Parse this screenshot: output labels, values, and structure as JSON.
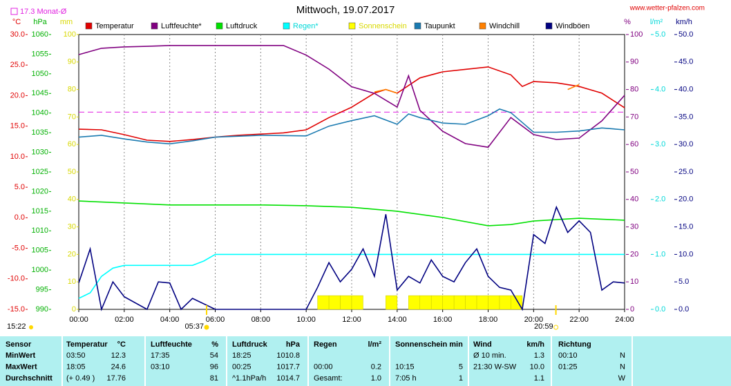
{
  "chart_data": {
    "type": "line",
    "title": "Mittwoch, 19.07.2017",
    "source": "www.wetter-pfalzen.com",
    "monthly_mean": {
      "label": "17.3 Monat-Ø",
      "value": 17.3,
      "color": "#e020e0"
    },
    "annotations": {
      "time": "15:22",
      "sunrise": {
        "label": "05:37",
        "value": 5.62
      },
      "sunset": {
        "label": "20:59",
        "value": 20.98
      }
    },
    "xlim": [
      0,
      24
    ],
    "xticks": [
      {
        "value": 0,
        "label": "00:00"
      },
      {
        "value": 2,
        "label": "02:00"
      },
      {
        "value": 4,
        "label": "04:00"
      },
      {
        "value": 6,
        "label": "06:00"
      },
      {
        "value": 8,
        "label": "08:00"
      },
      {
        "value": 10,
        "label": "10:00"
      },
      {
        "value": 12,
        "label": "12:00"
      },
      {
        "value": 14,
        "label": "14:00"
      },
      {
        "value": 16,
        "label": "16:00"
      },
      {
        "value": 18,
        "label": "18:00"
      },
      {
        "value": 20,
        "label": "20:00"
      },
      {
        "value": 22,
        "label": "22:00"
      },
      {
        "value": 24,
        "label": "24:00"
      }
    ],
    "grid": true,
    "axes": [
      {
        "label": "°C",
        "side": "left",
        "color": "#e00000",
        "lim": [
          -15,
          30
        ],
        "ticks": [
          {
            "value": -15,
            "label": "-15.0"
          },
          {
            "value": -10,
            "label": "-10.0"
          },
          {
            "value": -5,
            "label": "-5.0"
          },
          {
            "value": 0,
            "label": "0.0"
          },
          {
            "value": 5,
            "label": "5.0"
          },
          {
            "value": 10,
            "label": "10.0"
          },
          {
            "value": 15,
            "label": "15.0"
          },
          {
            "value": 20,
            "label": "20.0"
          },
          {
            "value": 25,
            "label": "25.0"
          },
          {
            "value": 30,
            "label": "30.0"
          }
        ]
      },
      {
        "label": "hPa",
        "side": "left",
        "color": "#00b000",
        "lim": [
          990,
          1060
        ],
        "ticks": [
          990,
          995,
          1000,
          1005,
          1010,
          1015,
          1020,
          1025,
          1030,
          1035,
          1040,
          1045,
          1050,
          1055,
          1060
        ]
      },
      {
        "label": "mm",
        "side": "left",
        "color": "#d8d800",
        "lim": [
          0,
          100
        ],
        "ticks": [
          0,
          10,
          20,
          30,
          40,
          50,
          60,
          70,
          80,
          90,
          100
        ]
      },
      {
        "label": "%",
        "side": "right",
        "color": "#800080",
        "lim": [
          0,
          100
        ],
        "ticks": [
          0,
          10,
          20,
          30,
          40,
          50,
          60,
          70,
          80,
          90,
          100
        ]
      },
      {
        "label": "l/m²",
        "side": "right",
        "color": "#00d8d8",
        "lim": [
          0,
          5
        ],
        "ticks": [
          {
            "value": 0,
            "label": "0.0"
          },
          {
            "value": 1,
            "label": "1.0"
          },
          {
            "value": 2,
            "label": "2.0"
          },
          {
            "value": 3,
            "label": "3.0"
          },
          {
            "value": 4,
            "label": "4.0"
          },
          {
            "value": 5,
            "label": "5.0"
          }
        ]
      },
      {
        "label": "km/h",
        "side": "right",
        "color": "#000080",
        "lim": [
          0,
          50
        ],
        "ticks": [
          {
            "value": 0,
            "label": "0.0"
          },
          {
            "value": 5,
            "label": "5.0"
          },
          {
            "value": 10,
            "label": "10.0"
          },
          {
            "value": 15,
            "label": "15.0"
          },
          {
            "value": 20,
            "label": "20.0"
          },
          {
            "value": 25,
            "label": "25.0"
          },
          {
            "value": 30,
            "label": "30.0"
          },
          {
            "value": 35,
            "label": "35.0"
          },
          {
            "value": 40,
            "label": "40.0"
          },
          {
            "value": 45,
            "label": "45.0"
          },
          {
            "value": 50,
            "label": "50.0"
          }
        ]
      }
    ],
    "series": [
      {
        "name": "Temperatur",
        "color": "#e00000",
        "axis": 0,
        "kind": "line",
        "x": [
          0,
          1,
          2,
          3,
          4,
          5,
          6,
          7,
          8,
          9,
          10,
          11,
          12,
          13,
          13.5,
          14,
          15,
          16,
          17,
          18,
          19,
          19.5,
          20,
          21,
          22,
          23,
          24
        ],
        "values": [
          14.5,
          14.4,
          13.6,
          12.7,
          12.5,
          12.8,
          13.2,
          13.5,
          13.7,
          13.9,
          14.4,
          16.4,
          18.1,
          20.4,
          21.0,
          20.4,
          22.9,
          23.9,
          24.3,
          24.7,
          23.4,
          21.5,
          22.3,
          22.1,
          21.5,
          20.4,
          18.0
        ]
      },
      {
        "name": "Luftfeuchte*",
        "color": "#800080",
        "axis": 3,
        "kind": "line",
        "x": [
          0,
          1,
          2,
          3,
          4,
          5,
          6,
          7,
          8,
          9,
          10,
          11,
          12,
          13,
          14,
          14.5,
          15,
          16,
          17,
          18,
          19,
          20,
          21,
          22,
          23,
          24
        ],
        "values": [
          92.7,
          95,
          95.5,
          95.7,
          96,
          96,
          96,
          96,
          96,
          96,
          92.5,
          87.4,
          81,
          78.6,
          73.6,
          85,
          72.4,
          64.8,
          60.3,
          59,
          69.8,
          63.6,
          61.8,
          62.3,
          68.6,
          77.9
        ]
      },
      {
        "name": "Luftdruck",
        "color": "#00e000",
        "axis": 1,
        "kind": "line",
        "x": [
          0,
          2,
          4,
          6,
          8,
          10,
          12,
          14,
          16,
          18,
          19,
          20,
          22,
          24
        ],
        "values": [
          1017.6,
          1017.1,
          1016.6,
          1016.6,
          1016.6,
          1016.4,
          1016.0,
          1015.0,
          1013.4,
          1011.3,
          1011.6,
          1012.5,
          1013.2,
          1012.7
        ]
      },
      {
        "name": "Regen*",
        "color": "#00ffff",
        "axis": 4,
        "kind": "line",
        "x": [
          0,
          0.5,
          1,
          1.5,
          2,
          3,
          4,
          5,
          5.5,
          6,
          8,
          10,
          12,
          14,
          16,
          18,
          20,
          22,
          24
        ],
        "values": [
          0.2,
          0.3,
          0.6,
          0.75,
          0.8,
          0.8,
          0.8,
          0.8,
          0.88,
          1.0,
          1.0,
          1.0,
          1.0,
          1.0,
          1.0,
          1.0,
          1.0,
          1.0,
          1.0
        ]
      },
      {
        "name": "Sonnenschein",
        "color": "#ffff00",
        "axis": 2,
        "kind": "bar",
        "x": [
          10.5,
          11,
          11.5,
          12,
          13.5,
          14.5,
          15,
          15.5,
          16,
          16.5,
          17,
          17.5,
          18,
          18.5,
          19
        ],
        "values": [
          5,
          5,
          5,
          5,
          5,
          5,
          5,
          5,
          5,
          5,
          5,
          5,
          5,
          5,
          5
        ]
      },
      {
        "name": "Taupunkt",
        "color": "#1a7ab0",
        "axis": 0,
        "kind": "line",
        "x": [
          0,
          1,
          2,
          3,
          4,
          5,
          6,
          8,
          10,
          11,
          12,
          13,
          14,
          14.5,
          15,
          16,
          17,
          18,
          18.5,
          19,
          20,
          21,
          22,
          23,
          24
        ],
        "values": [
          13.2,
          13.5,
          12.9,
          12.4,
          12.1,
          12.6,
          13.2,
          13.5,
          13.4,
          15,
          15.9,
          16.7,
          15.3,
          17,
          16.4,
          15.5,
          15.3,
          16.7,
          17.8,
          17.2,
          14,
          14,
          14.2,
          14.7,
          14.4
        ]
      },
      {
        "name": "Windchill",
        "color": "#ff8000",
        "axis": 0,
        "kind": "line",
        "x": [
          13,
          13.5,
          14,
          21,
          21.5,
          22
        ],
        "values": [
          20.6,
          21.0,
          20.4,
          null,
          21.0,
          21.8
        ]
      },
      {
        "name": "Windböen",
        "color": "#000080",
        "axis": 5,
        "kind": "line",
        "x": [
          0,
          0.5,
          1,
          1.5,
          2,
          3,
          3.5,
          4,
          4.5,
          5,
          6,
          8,
          10,
          10.5,
          11,
          11.5,
          12,
          12.5,
          13,
          13.5,
          14,
          14.5,
          15,
          15.5,
          16,
          16.5,
          17,
          17.5,
          18,
          18.5,
          19,
          19.5,
          20,
          20.5,
          21,
          21.5,
          22,
          22.5,
          23,
          23.5,
          24
        ],
        "values": [
          4.8,
          11,
          0,
          5,
          2.3,
          0,
          5,
          4.8,
          0,
          2,
          0,
          0,
          0,
          4,
          8.5,
          5,
          7.3,
          11,
          6,
          17.3,
          3.5,
          6,
          4.8,
          9,
          6,
          5,
          8.5,
          11,
          6,
          4,
          3.5,
          0,
          13.6,
          12,
          18.6,
          14,
          16.1,
          14,
          3.5,
          5,
          4.8
        ]
      }
    ],
    "table": {
      "header": [
        "Sensor",
        "Temperatur",
        "°C",
        "Luftfeuchte",
        "%",
        "Luftdruck",
        "hPa",
        "Regen",
        "l/m²",
        "Sonnenschein min",
        null,
        "Wind",
        "km/h",
        "Richtung",
        null
      ],
      "rows": [
        [
          "MinWert",
          "03:50",
          "12.3",
          "17:35",
          "54",
          "18:25",
          "1010.8",
          null,
          null,
          null,
          null,
          "Ø 10 min.",
          "1.3",
          "00:10",
          "N"
        ],
        [
          "MaxWert",
          "18:05",
          "24.6",
          "03:10",
          "96",
          "00:25",
          "1017.7",
          "00:00",
          "0.2",
          "10:15",
          "5",
          "21:30    W-SW",
          "10.0",
          "01:25",
          "N"
        ],
        [
          "Durchschnitt",
          "(+ 0.49 )",
          "17.76",
          null,
          "81",
          "^1.1hPa/h",
          "1014.7",
          "Gesamt:",
          "1.0",
          "7:05 h",
          "1",
          null,
          "1.1",
          null,
          "W"
        ]
      ]
    }
  }
}
